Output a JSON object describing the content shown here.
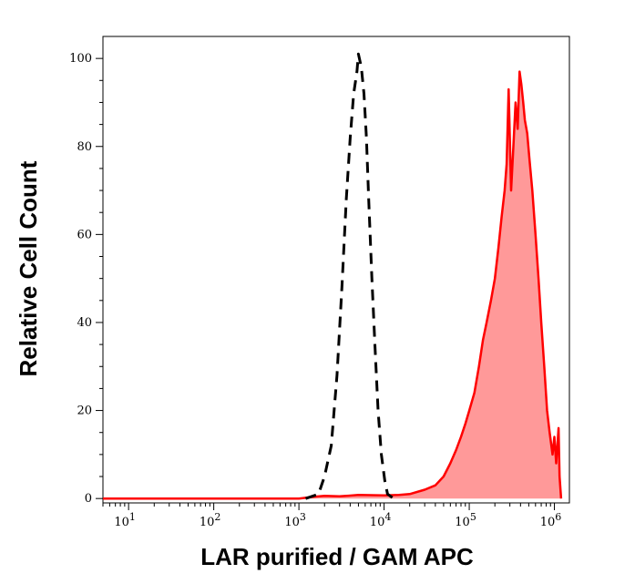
{
  "chart_data": {
    "type": "area",
    "xlabel": "LAR purified / GAM APC",
    "ylabel": "Relative Cell Count",
    "x_scale": "log",
    "xlim": [
      5,
      1500000.0
    ],
    "ylim": [
      -1,
      105
    ],
    "x_ticks": [
      {
        "base": "10",
        "exp": "1",
        "value": 10
      },
      {
        "base": "10",
        "exp": "2",
        "value": 100
      },
      {
        "base": "10",
        "exp": "3",
        "value": 1000
      },
      {
        "base": "10",
        "exp": "4",
        "value": 10000
      },
      {
        "base": "10",
        "exp": "5",
        "value": 100000
      },
      {
        "base": "10",
        "exp": "6",
        "value": 1000000
      }
    ],
    "y_ticks": [
      0,
      20,
      40,
      60,
      80,
      100
    ],
    "grid": false,
    "series": [
      {
        "style": "dashed-black-line",
        "color": "#000000",
        "points": [
          [
            1200,
            0
          ],
          [
            1700,
            1
          ],
          [
            2000,
            5
          ],
          [
            2400,
            12
          ],
          [
            2800,
            28
          ],
          [
            3200,
            48
          ],
          [
            3600,
            68
          ],
          [
            4000,
            82
          ],
          [
            4400,
            92
          ],
          [
            4800,
            97
          ],
          [
            5000,
            101
          ],
          [
            5400,
            98
          ],
          [
            5800,
            92
          ],
          [
            6200,
            82
          ],
          [
            6600,
            68
          ],
          [
            7200,
            50
          ],
          [
            7800,
            35
          ],
          [
            8500,
            20
          ],
          [
            9300,
            10
          ],
          [
            10200,
            4
          ],
          [
            11000,
            1
          ],
          [
            13000,
            0
          ]
        ]
      },
      {
        "style": "filled-red-area",
        "color": "#ff0000",
        "fill": "#ff9999",
        "points": [
          [
            5,
            0
          ],
          [
            1000,
            0
          ],
          [
            1500,
            0.4
          ],
          [
            2000,
            0.6
          ],
          [
            3000,
            0.5
          ],
          [
            5000,
            0.8
          ],
          [
            10000,
            0.7
          ],
          [
            15000,
            0.8
          ],
          [
            20000,
            1
          ],
          [
            30000,
            2
          ],
          [
            40000,
            3
          ],
          [
            50000,
            5
          ],
          [
            60000,
            8
          ],
          [
            70000,
            11
          ],
          [
            80000,
            14
          ],
          [
            90000,
            17
          ],
          [
            100000,
            20
          ],
          [
            115000,
            24
          ],
          [
            130000,
            30
          ],
          [
            145000,
            36
          ],
          [
            160000,
            40
          ],
          [
            180000,
            45
          ],
          [
            200000,
            50
          ],
          [
            220000,
            57
          ],
          [
            240000,
            64
          ],
          [
            260000,
            70
          ],
          [
            275000,
            76
          ],
          [
            290000,
            93
          ],
          [
            310000,
            70
          ],
          [
            330000,
            80
          ],
          [
            350000,
            90
          ],
          [
            370000,
            84
          ],
          [
            390000,
            97
          ],
          [
            410000,
            94
          ],
          [
            430000,
            90
          ],
          [
            450000,
            86
          ],
          [
            480000,
            83
          ],
          [
            510000,
            77
          ],
          [
            550000,
            70
          ],
          [
            600000,
            60
          ],
          [
            650000,
            50
          ],
          [
            700000,
            40
          ],
          [
            760000,
            30
          ],
          [
            820000,
            20
          ],
          [
            880000,
            15
          ],
          [
            950000,
            10
          ],
          [
            1000000,
            14
          ],
          [
            1050000,
            8
          ],
          [
            1120000,
            16
          ],
          [
            1150000,
            5
          ],
          [
            1200000,
            0
          ]
        ]
      }
    ]
  }
}
